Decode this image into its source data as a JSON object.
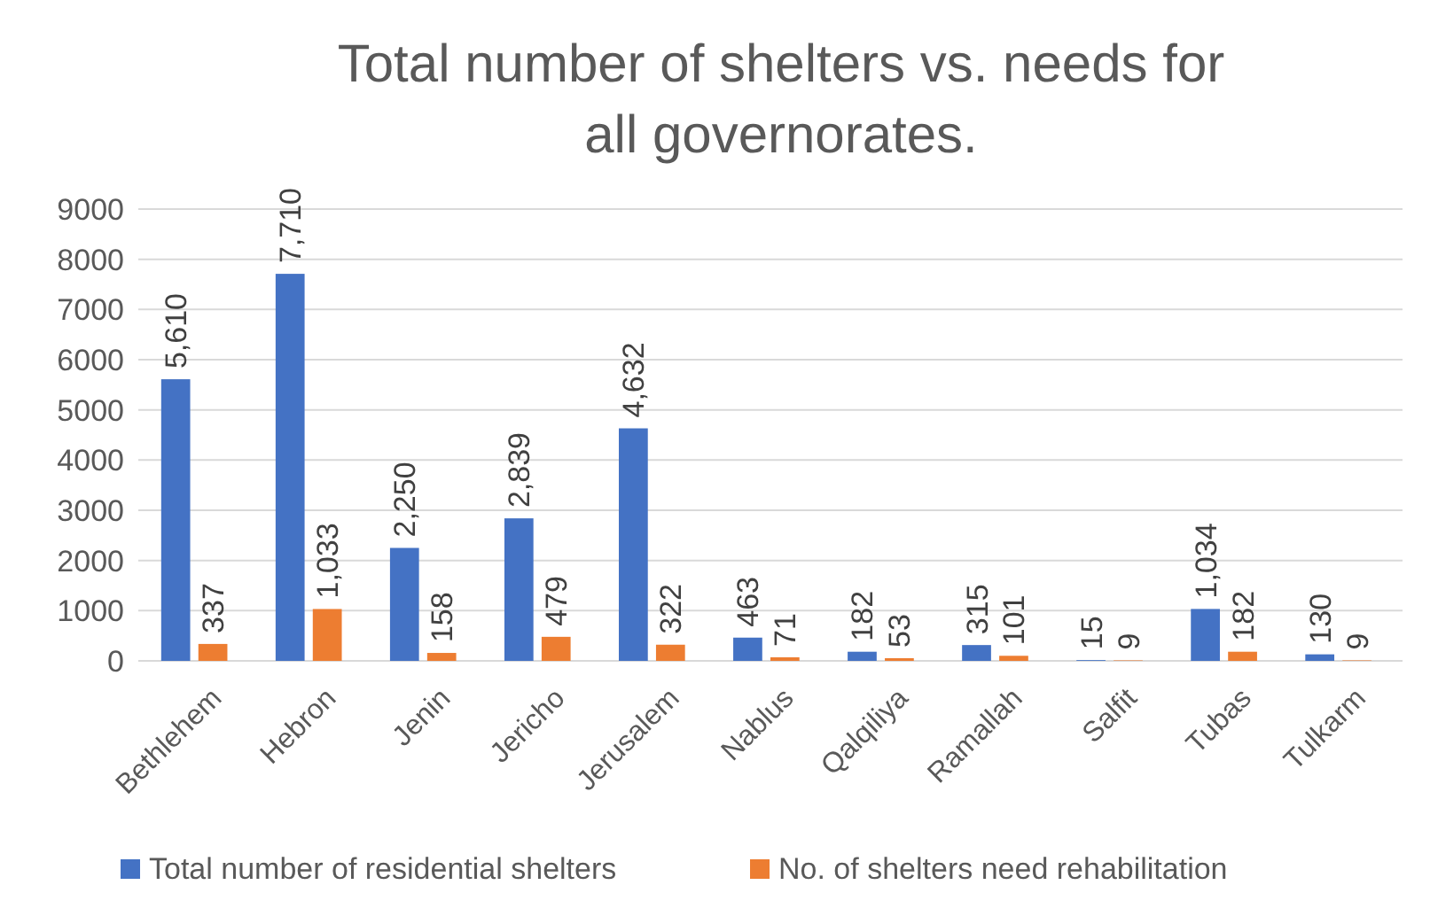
{
  "chart_data": {
    "type": "bar",
    "title": "Total number of shelters vs. needs for all governorates.",
    "categories": [
      "Bethlehem",
      "Hebron",
      "Jenin",
      "Jericho",
      "Jerusalem",
      "Nablus",
      "Qalqiliya",
      "Ramallah",
      "Salfit",
      "Tubas",
      "Tulkarm"
    ],
    "series": [
      {
        "name": "Total number of residential shelters",
        "color": "#4472c4",
        "values": [
          5610,
          7710,
          2250,
          2839,
          4632,
          463,
          182,
          315,
          15,
          1034,
          130
        ],
        "value_labels": [
          "5,610",
          "7,710",
          "2,250",
          "2,839",
          "4,632",
          "463",
          "182",
          "315",
          "15",
          "1,034",
          "130"
        ]
      },
      {
        "name": "No. of shelters need rehabilitation",
        "color": "#ed7d31",
        "values": [
          337,
          1033,
          158,
          479,
          322,
          71,
          53,
          101,
          9,
          182,
          9
        ],
        "value_labels": [
          "337",
          "1,033",
          "158",
          "479",
          "322",
          "71",
          "53",
          "101",
          "9",
          "182",
          "9"
        ]
      }
    ],
    "ylim": [
      0,
      9000
    ],
    "yticks": [
      0,
      1000,
      2000,
      3000,
      4000,
      5000,
      6000,
      7000,
      8000,
      9000
    ],
    "grid": "y",
    "legend": "bottom"
  }
}
